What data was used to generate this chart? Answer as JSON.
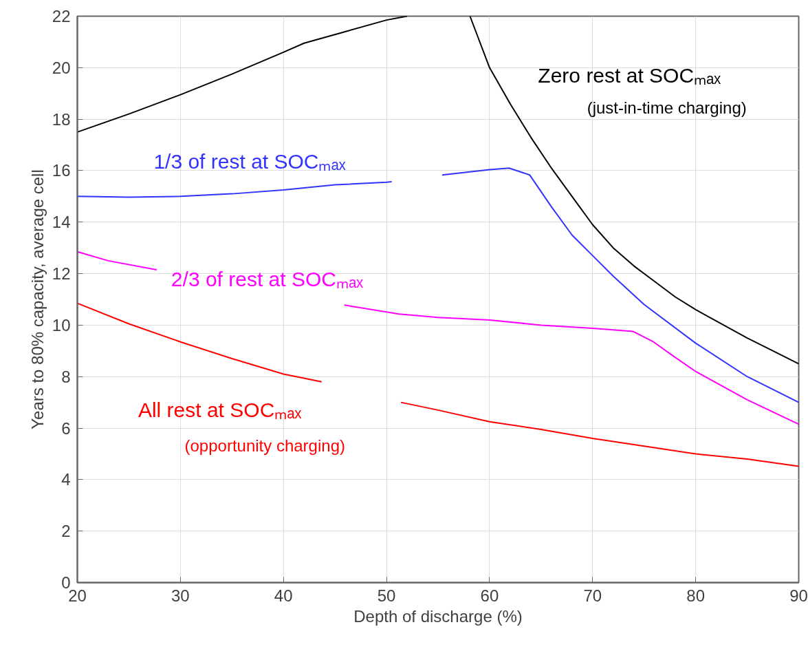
{
  "chart_data": {
    "type": "line",
    "xlabel": "Depth of discharge (%)",
    "ylabel": "Years to 80% capacity, average cell",
    "xlim": [
      20,
      90
    ],
    "xticks": [
      20,
      30,
      40,
      50,
      60,
      70,
      80,
      90
    ],
    "ylim": [
      0,
      22
    ],
    "yticks": [
      0,
      2,
      4,
      6,
      8,
      10,
      12,
      14,
      16,
      18,
      20,
      22
    ],
    "grid": true,
    "legend": false,
    "marker": "none",
    "line_style": "solid",
    "annotations": [
      "(just-in-time charging)",
      "(opportunity charging)"
    ],
    "series": [
      {
        "name": "Zero rest at SOCₘₐₓ",
        "color": "#000000",
        "x": [
          20,
          25,
          30,
          35,
          40,
          42,
          46,
          50,
          52,
          55,
          58.1,
          60,
          62,
          64,
          66,
          68,
          70,
          72,
          74,
          76,
          78,
          80,
          85,
          90
        ],
        "values": [
          17.5,
          18.2,
          18.95,
          19.75,
          20.6,
          20.95,
          21.4,
          21.85,
          22.0,
          null,
          22.0,
          20.0,
          18.6,
          17.3,
          16.1,
          15.0,
          13.9,
          13.0,
          12.3,
          11.7,
          11.1,
          10.6,
          9.5,
          8.5
        ]
      },
      {
        "name": "1/3 of rest at SOCₘₐₓ",
        "color": "#3333ff",
        "x": [
          20,
          25,
          30,
          35,
          40,
          45,
          50,
          50.5,
          53,
          55.4,
          60,
          61.9,
          63.9,
          66,
          68,
          70,
          72,
          75,
          80,
          85,
          90
        ],
        "values": [
          15.0,
          14.97,
          15.0,
          15.1,
          15.25,
          15.45,
          15.55,
          15.57,
          null,
          15.83,
          16.04,
          16.1,
          15.83,
          14.6,
          13.5,
          12.7,
          11.9,
          10.8,
          9.3,
          8.0,
          7.0
        ]
      },
      {
        "name": "2/3 of rest at SOCₘₐₓ",
        "color": "#ff00ff",
        "x": [
          20,
          23,
          27.7,
          36,
          45.9,
          51.2,
          55,
          60,
          65,
          70,
          73.9,
          75.9,
          78,
          80,
          85,
          90
        ],
        "values": [
          12.85,
          12.5,
          12.15,
          null,
          10.78,
          10.43,
          10.3,
          10.2,
          10.0,
          9.88,
          9.76,
          9.35,
          8.75,
          8.2,
          7.1,
          6.15
        ]
      },
      {
        "name": "All rest at SOCₘₐₓ",
        "color": "#ff0000",
        "x": [
          20,
          25,
          30,
          35,
          40,
          43.7,
          47,
          51.4,
          55,
          60,
          65,
          70,
          75,
          80,
          85,
          90
        ],
        "values": [
          10.85,
          10.05,
          9.35,
          8.7,
          8.1,
          7.8,
          null,
          7.0,
          6.7,
          6.25,
          5.95,
          5.6,
          5.3,
          5.0,
          4.8,
          4.52
        ]
      }
    ]
  }
}
